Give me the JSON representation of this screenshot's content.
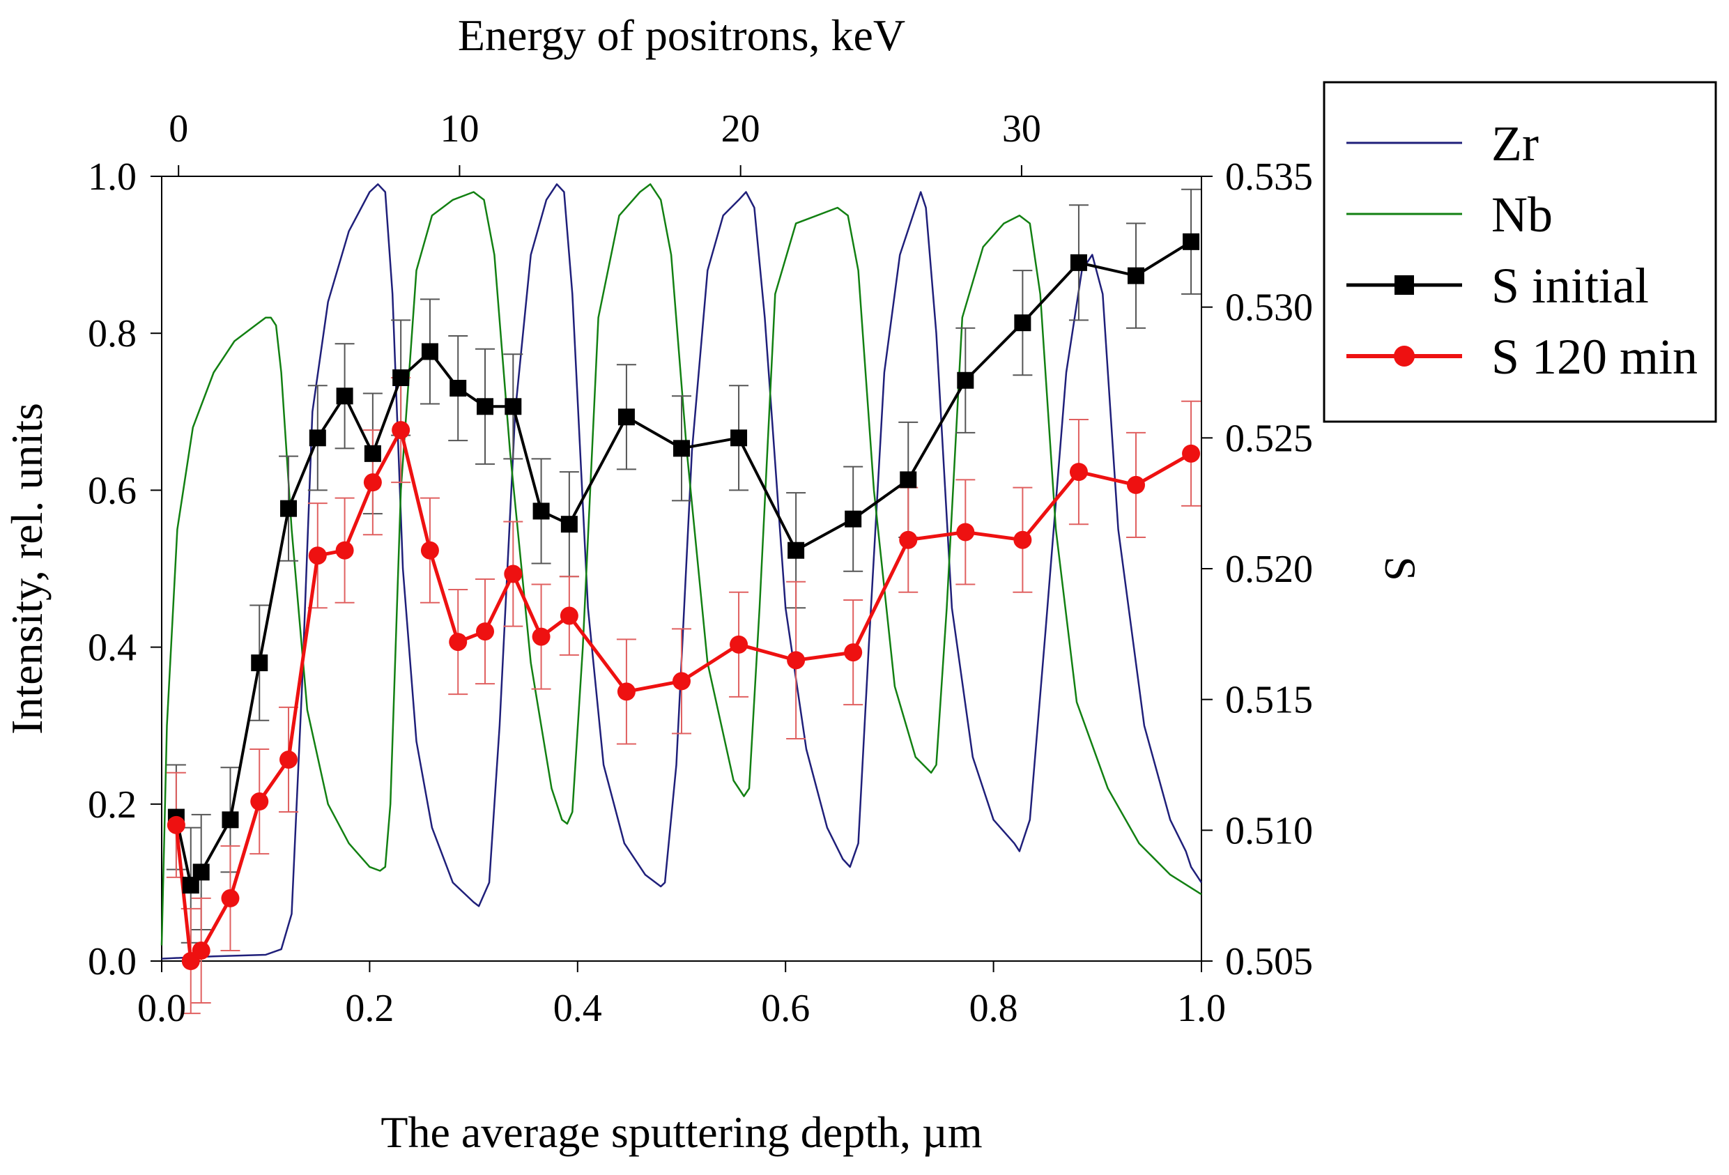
{
  "chart_data": {
    "type": "line",
    "title": "",
    "xlabel": "The average sputtering depth, µm",
    "x_top_label": "Energy of positrons, keV",
    "ylabel_left": "Intensity, rel. units",
    "ylabel_right": "S",
    "xlim": [
      0.0,
      1.0
    ],
    "ylim_left": [
      0.0,
      1.0
    ],
    "ylim_right": [
      0.505,
      0.535
    ],
    "x_top_lim": [
      -0.6,
      36.4
    ],
    "xticks": [
      "0.0",
      "0.2",
      "0.4",
      "0.6",
      "0.8",
      "1.0"
    ],
    "x_top_ticks": [
      "0",
      "10",
      "20",
      "30"
    ],
    "yticks_left": [
      "0.0",
      "0.2",
      "0.4",
      "0.6",
      "0.8",
      "1.0"
    ],
    "yticks_right": [
      "0.505",
      "0.510",
      "0.515",
      "0.520",
      "0.525",
      "0.530",
      "0.535"
    ],
    "legend_position": "outside-right-top",
    "grid": false,
    "series": [
      {
        "name": "Zr",
        "axis": "left",
        "color": "#1f1f7a",
        "marker": "none",
        "x": [
          0.0,
          0.05,
          0.1,
          0.115,
          0.125,
          0.135,
          0.145,
          0.16,
          0.18,
          0.2,
          0.208,
          0.215,
          0.222,
          0.232,
          0.245,
          0.26,
          0.28,
          0.3,
          0.305,
          0.315,
          0.325,
          0.34,
          0.355,
          0.37,
          0.38,
          0.387,
          0.395,
          0.41,
          0.425,
          0.445,
          0.465,
          0.48,
          0.484,
          0.495,
          0.51,
          0.525,
          0.54,
          0.555,
          0.562,
          0.57,
          0.58,
          0.6,
          0.62,
          0.64,
          0.655,
          0.662,
          0.67,
          0.68,
          0.695,
          0.71,
          0.725,
          0.73,
          0.735,
          0.745,
          0.76,
          0.78,
          0.8,
          0.82,
          0.825,
          0.835,
          0.85,
          0.87,
          0.885,
          0.895,
          0.905,
          0.92,
          0.945,
          0.97,
          0.985,
          0.99,
          1.0
        ],
        "values": [
          0.003,
          0.006,
          0.008,
          0.015,
          0.06,
          0.35,
          0.7,
          0.84,
          0.93,
          0.98,
          0.99,
          0.98,
          0.85,
          0.5,
          0.28,
          0.17,
          0.1,
          0.075,
          0.07,
          0.1,
          0.3,
          0.7,
          0.9,
          0.97,
          0.99,
          0.98,
          0.85,
          0.45,
          0.25,
          0.15,
          0.11,
          0.095,
          0.1,
          0.25,
          0.65,
          0.88,
          0.95,
          0.97,
          0.98,
          0.96,
          0.82,
          0.45,
          0.27,
          0.17,
          0.13,
          0.12,
          0.15,
          0.4,
          0.75,
          0.9,
          0.96,
          0.98,
          0.96,
          0.8,
          0.45,
          0.26,
          0.18,
          0.15,
          0.14,
          0.18,
          0.42,
          0.75,
          0.88,
          0.9,
          0.85,
          0.55,
          0.3,
          0.18,
          0.14,
          0.12,
          0.1
        ]
      },
      {
        "name": "Nb",
        "axis": "left",
        "color": "#128012",
        "marker": "none",
        "x": [
          0.0,
          0.005,
          0.015,
          0.03,
          0.05,
          0.07,
          0.09,
          0.1,
          0.105,
          0.11,
          0.115,
          0.125,
          0.14,
          0.16,
          0.18,
          0.2,
          0.21,
          0.215,
          0.22,
          0.23,
          0.245,
          0.26,
          0.28,
          0.3,
          0.31,
          0.32,
          0.335,
          0.355,
          0.375,
          0.385,
          0.39,
          0.395,
          0.405,
          0.42,
          0.44,
          0.46,
          0.47,
          0.48,
          0.49,
          0.505,
          0.525,
          0.55,
          0.56,
          0.565,
          0.575,
          0.59,
          0.61,
          0.63,
          0.65,
          0.66,
          0.67,
          0.685,
          0.705,
          0.725,
          0.74,
          0.745,
          0.755,
          0.77,
          0.79,
          0.81,
          0.825,
          0.835,
          0.845,
          0.86,
          0.88,
          0.91,
          0.94,
          0.97,
          1.0
        ],
        "values": [
          0.02,
          0.3,
          0.55,
          0.68,
          0.75,
          0.79,
          0.81,
          0.82,
          0.82,
          0.81,
          0.75,
          0.55,
          0.32,
          0.2,
          0.15,
          0.12,
          0.115,
          0.12,
          0.2,
          0.6,
          0.88,
          0.95,
          0.97,
          0.98,
          0.97,
          0.9,
          0.65,
          0.38,
          0.22,
          0.18,
          0.175,
          0.19,
          0.4,
          0.82,
          0.95,
          0.98,
          0.99,
          0.97,
          0.9,
          0.65,
          0.38,
          0.23,
          0.21,
          0.22,
          0.45,
          0.85,
          0.94,
          0.95,
          0.96,
          0.95,
          0.88,
          0.6,
          0.35,
          0.26,
          0.24,
          0.25,
          0.45,
          0.82,
          0.91,
          0.94,
          0.95,
          0.94,
          0.85,
          0.55,
          0.33,
          0.22,
          0.15,
          0.11,
          0.085
        ]
      },
      {
        "name": "S initial",
        "axis": "right",
        "color": "#000000",
        "marker": "square",
        "x": [
          0.014,
          0.028,
          0.038,
          0.066,
          0.094,
          0.122,
          0.15,
          0.176,
          0.203,
          0.23,
          0.258,
          0.285,
          0.311,
          0.338,
          0.365,
          0.392,
          0.447,
          0.5,
          0.555,
          0.61,
          0.665,
          0.718,
          0.773,
          0.828,
          0.882,
          0.937,
          0.99
        ],
        "values": [
          0.5105,
          0.5079,
          0.5084,
          0.5104,
          0.5164,
          0.5223,
          0.525,
          0.5266,
          0.5244,
          0.5273,
          0.5283,
          0.5269,
          0.5262,
          0.5262,
          0.5222,
          0.5217,
          0.5258,
          0.5246,
          0.525,
          0.5207,
          0.5219,
          0.5234,
          0.5272,
          0.5294,
          0.5317,
          0.5312,
          0.5325
        ],
        "errors": [
          0.002,
          0.0022,
          0.0022,
          0.002,
          0.0022,
          0.002,
          0.002,
          0.002,
          0.0023,
          0.0022,
          0.002,
          0.002,
          0.0022,
          0.002,
          0.002,
          0.002,
          0.002,
          0.002,
          0.002,
          0.0022,
          0.002,
          0.0022,
          0.002,
          0.002,
          0.0022,
          0.002,
          0.002
        ]
      },
      {
        "name": "S 120 min",
        "axis": "right",
        "color": "#ee1111",
        "marker": "circle",
        "x": [
          0.014,
          0.028,
          0.038,
          0.066,
          0.094,
          0.122,
          0.15,
          0.176,
          0.203,
          0.23,
          0.258,
          0.285,
          0.311,
          0.338,
          0.365,
          0.392,
          0.447,
          0.5,
          0.555,
          0.61,
          0.665,
          0.718,
          0.773,
          0.828,
          0.882,
          0.937,
          0.99
        ],
        "values": [
          0.5102,
          0.505,
          0.5054,
          0.5074,
          0.5111,
          0.5127,
          0.5205,
          0.5207,
          0.5233,
          0.5253,
          0.5207,
          0.5172,
          0.5176,
          0.5198,
          0.5174,
          0.5182,
          0.5153,
          0.5157,
          0.5171,
          0.5165,
          0.5168,
          0.5211,
          0.5214,
          0.5211,
          0.5237,
          0.5232,
          0.5244
        ],
        "errors": [
          0.002,
          0.002,
          0.002,
          0.002,
          0.002,
          0.002,
          0.002,
          0.002,
          0.002,
          0.002,
          0.002,
          0.002,
          0.002,
          0.002,
          0.002,
          0.0015,
          0.002,
          0.002,
          0.002,
          0.003,
          0.002,
          0.002,
          0.002,
          0.002,
          0.002,
          0.002,
          0.002
        ]
      }
    ]
  }
}
